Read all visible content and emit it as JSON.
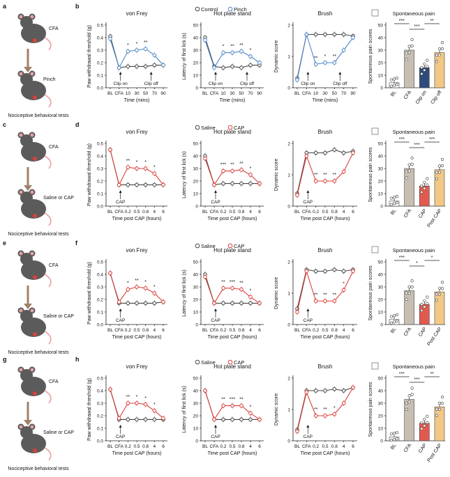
{
  "colors": {
    "control": "#444444",
    "pinch": "#4f86c6",
    "saline": "#444444",
    "cap": "#d9413d",
    "cfa_bar": "#c8bfb3",
    "clip_bar": "#2f4b7c",
    "cap_bar": "#e25a4f",
    "postcap_bar": "#f3c887",
    "bl_bar": "#ffffff"
  },
  "rows": [
    {
      "label_left": "a",
      "label_right": "b",
      "legend": [
        "Control",
        "Pinch"
      ],
      "treat_color": "pinch",
      "mouse_text": [
        "CFA",
        "Pinch"
      ],
      "footer": "Nociceptive behavioral tests",
      "x_ticks": [
        "BL",
        "CFA",
        "10",
        "30",
        "50",
        "70",
        "90"
      ],
      "x_title": "Time (mins)",
      "annots": [
        "Clip on",
        "Clip off"
      ],
      "bar_cats": [
        "BL",
        "CFA",
        "Clip on",
        "Clip off"
      ],
      "bar_colors": [
        "bl_bar",
        "cfa_bar",
        "clip_bar",
        "postcap_bar"
      ]
    },
    {
      "label_left": "c",
      "label_right": "d",
      "legend": [
        "Saline",
        "CAP"
      ],
      "treat_color": "cap",
      "mouse_text": [
        "CFA",
        "Saline or CAP"
      ],
      "footer": "Nociceptive behavioral tests",
      "x_ticks": [
        "BL",
        "CFA",
        "0.2",
        "0.5",
        "0.8",
        "4",
        "6"
      ],
      "x_title": "Time post CAP (hours)",
      "annots": [
        "CAP"
      ],
      "bar_cats": [
        "BL",
        "CFA",
        "CAP",
        "Post CAP"
      ],
      "bar_colors": [
        "bl_bar",
        "cfa_bar",
        "cap_bar",
        "postcap_bar"
      ]
    },
    {
      "label_left": "e",
      "label_right": "f",
      "legend": [
        "Saline",
        "CAP"
      ],
      "treat_color": "cap",
      "mouse_text": [
        "CFA",
        "Saline or CAP"
      ],
      "footer": "Nociceptive behavioral tests",
      "x_ticks": [
        "BL",
        "CFA",
        "0.2",
        "0.5",
        "0.8",
        "4",
        "6"
      ],
      "x_title": "Time post CAP (hours)",
      "annots": [
        "CAP"
      ],
      "bar_cats": [
        "BL",
        "CFA",
        "CAP",
        "Post CAP"
      ],
      "bar_colors": [
        "bl_bar",
        "cfa_bar",
        "cap_bar",
        "postcap_bar"
      ]
    },
    {
      "label_left": "g",
      "label_right": "h",
      "legend": [
        "Saline",
        "CAP"
      ],
      "treat_color": "cap",
      "mouse_text": [
        "CFA",
        "Saline or CAP"
      ],
      "footer": "Nociceptive behavioral tests",
      "x_ticks": [
        "BL",
        "CFA",
        "0.2",
        "0.5",
        "0.8",
        "4",
        "6"
      ],
      "x_title": "Time post CAP (hours)",
      "annots": [
        "CAP"
      ],
      "bar_cats": [
        "BL",
        "CFA",
        "CAP",
        "Post CAP"
      ],
      "bar_colors": [
        "bl_bar",
        "cfa_bar",
        "cap_bar",
        "postcap_bar"
      ]
    }
  ],
  "panel_titles": [
    "von Frey",
    "Hot plate stand",
    "Brush",
    "Spontaneous pain"
  ],
  "y_titles": [
    "Paw withdrawal threshold (g)",
    "Latency of first lick (s)",
    "Dynamic score",
    "Spontaneous pain scores"
  ],
  "chart_data": [
    {
      "row": 1,
      "panel": "von Frey",
      "type": "line",
      "x": [
        "BL",
        "CFA",
        "10",
        "30",
        "50",
        "70",
        "90"
      ],
      "ylim": [
        0,
        0.5
      ],
      "yticks": [
        "0.0",
        "0.1",
        "0.2",
        "0.3",
        "0.4",
        "0.5"
      ],
      "series": [
        {
          "name": "Control",
          "values": [
            0.41,
            0.16,
            0.17,
            0.17,
            0.17,
            0.18,
            0.18
          ]
        },
        {
          "name": "Pinch",
          "values": [
            0.39,
            0.16,
            0.29,
            0.3,
            0.31,
            0.26,
            0.18
          ]
        }
      ],
      "stars": [
        "",
        "",
        "*",
        "*",
        "**",
        "",
        ""
      ]
    },
    {
      "row": 1,
      "panel": "Hot plate stand",
      "type": "line",
      "x": [
        "BL",
        "CFA",
        "10",
        "30",
        "50",
        "70",
        "90"
      ],
      "ylim": [
        0,
        50
      ],
      "yticks": [
        "0",
        "10",
        "20",
        "30",
        "40",
        "50"
      ],
      "series": [
        {
          "name": "Control",
          "values": [
            40,
            17,
            16,
            17,
            16,
            18,
            18
          ]
        },
        {
          "name": "Pinch",
          "values": [
            38,
            16,
            28,
            28,
            29,
            25,
            20
          ]
        }
      ],
      "stars": [
        "",
        "",
        "*",
        "**",
        "**",
        "*",
        ""
      ]
    },
    {
      "row": 1,
      "panel": "Brush",
      "type": "line",
      "x": [
        "BL",
        "CFA",
        "10",
        "30",
        "50",
        "70",
        "90"
      ],
      "ylim": [
        0,
        2
      ],
      "yticks": [
        "0",
        "1",
        "2"
      ],
      "series": [
        {
          "name": "Control",
          "values": [
            0.3,
            1.7,
            1.7,
            1.7,
            1.7,
            1.7,
            1.65
          ]
        },
        {
          "name": "Pinch",
          "values": [
            0.25,
            1.7,
            0.75,
            0.8,
            0.8,
            1.2,
            1.6
          ]
        }
      ],
      "stars": [
        "",
        "",
        "**",
        "*",
        "**",
        "",
        ""
      ]
    },
    {
      "row": 1,
      "panel": "Spontaneous pain",
      "type": "bar",
      "categories": [
        "BL",
        "CFA",
        "Clip on",
        "Clip off"
      ],
      "values": [
        4,
        30,
        16,
        28
      ],
      "ylim": [
        0,
        50
      ],
      "yticks": [
        "0",
        "10",
        "20",
        "30",
        "40",
        "50"
      ],
      "sig": [
        [
          "***",
          0,
          1
        ],
        [
          "***",
          1,
          2
        ],
        [
          "**",
          2,
          3
        ]
      ]
    },
    {
      "row": 2,
      "panel": "von Frey",
      "type": "line",
      "x": [
        "BL",
        "CFA",
        "0.2",
        "0.5",
        "0.8",
        "4",
        "6"
      ],
      "ylim": [
        0,
        0.5
      ],
      "yticks": [
        "0.0",
        "0.1",
        "0.2",
        "0.3",
        "0.4",
        "0.5"
      ],
      "series": [
        {
          "name": "Saline",
          "values": [
            0.45,
            0.17,
            0.17,
            0.17,
            0.17,
            0.17,
            0.17
          ]
        },
        {
          "name": "CAP",
          "values": [
            0.45,
            0.17,
            0.31,
            0.3,
            0.3,
            0.26,
            0.17
          ]
        }
      ],
      "stars": [
        "",
        "",
        "**",
        "*",
        "*",
        "*",
        ""
      ]
    },
    {
      "row": 2,
      "panel": "Hot plate stand",
      "type": "line",
      "x": [
        "BL",
        "CFA",
        "0.2",
        "0.5",
        "0.8",
        "4",
        "6"
      ],
      "ylim": [
        0,
        50
      ],
      "yticks": [
        "0",
        "10",
        "20",
        "30",
        "40",
        "50"
      ],
      "series": [
        {
          "name": "Saline",
          "values": [
            40,
            17,
            18,
            18,
            18,
            18,
            18
          ]
        },
        {
          "name": "CAP",
          "values": [
            38,
            17,
            28,
            28,
            29,
            25,
            18
          ]
        }
      ],
      "stars": [
        "",
        "",
        "***",
        "**",
        "**",
        "*",
        ""
      ]
    },
    {
      "row": 2,
      "panel": "Brush",
      "type": "line",
      "x": [
        "BL",
        "CFA",
        "0.2",
        "0.5",
        "0.8",
        "4",
        "6"
      ],
      "ylim": [
        0,
        2
      ],
      "yticks": [
        "0",
        "1",
        "2"
      ],
      "series": [
        {
          "name": "Saline",
          "values": [
            0.4,
            1.7,
            1.7,
            1.7,
            1.8,
            1.7,
            1.75
          ]
        },
        {
          "name": "CAP",
          "values": [
            0.35,
            1.6,
            0.8,
            0.8,
            0.8,
            1.1,
            1.7
          ]
        }
      ],
      "stars": [
        "",
        "",
        "**",
        "**",
        "**",
        "",
        ""
      ]
    },
    {
      "row": 2,
      "panel": "Spontaneous pain",
      "type": "bar",
      "categories": [
        "BL",
        "CFA",
        "CAP",
        "Post CAP"
      ],
      "values": [
        4,
        30,
        16,
        29
      ],
      "ylim": [
        0,
        50
      ],
      "yticks": [
        "0",
        "10",
        "20",
        "30",
        "40",
        "50"
      ],
      "sig": [
        [
          "***",
          0,
          1
        ],
        [
          "***",
          1,
          2
        ],
        [
          "***",
          2,
          3
        ]
      ]
    },
    {
      "row": 3,
      "panel": "von Frey",
      "type": "line",
      "x": [
        "BL",
        "CFA",
        "0.2",
        "0.5",
        "0.8",
        "4",
        "6"
      ],
      "ylim": [
        0,
        0.5
      ],
      "yticks": [
        "0.0",
        "0.1",
        "0.2",
        "0.3",
        "0.4",
        "0.5"
      ],
      "series": [
        {
          "name": "Saline",
          "values": [
            0.41,
            0.17,
            0.17,
            0.17,
            0.17,
            0.17,
            0.18
          ]
        },
        {
          "name": "CAP",
          "values": [
            0.41,
            0.18,
            0.28,
            0.3,
            0.29,
            0.25,
            0.18
          ]
        }
      ],
      "stars": [
        "",
        "",
        "*",
        "**",
        "*",
        "*",
        ""
      ]
    },
    {
      "row": 3,
      "panel": "Hot plate stand",
      "type": "line",
      "x": [
        "BL",
        "CFA",
        "0.2",
        "0.5",
        "0.8",
        "4",
        "6"
      ],
      "ylim": [
        0,
        50
      ],
      "yticks": [
        "0",
        "10",
        "20",
        "30",
        "40",
        "50"
      ],
      "series": [
        {
          "name": "Saline",
          "values": [
            40,
            17,
            17,
            17,
            17,
            17,
            17
          ]
        },
        {
          "name": "CAP",
          "values": [
            38,
            17,
            29,
            29,
            28,
            22,
            17
          ]
        }
      ],
      "stars": [
        "",
        "",
        "**",
        "***",
        "**",
        "*",
        ""
      ]
    },
    {
      "row": 3,
      "panel": "Brush",
      "type": "line",
      "x": [
        "BL",
        "CFA",
        "0.2",
        "0.5",
        "0.8",
        "4",
        "6"
      ],
      "ylim": [
        0,
        2
      ],
      "yticks": [
        "0",
        "1",
        "2"
      ],
      "series": [
        {
          "name": "Saline",
          "values": [
            0.5,
            1.75,
            1.7,
            1.7,
            1.75,
            1.7,
            1.75
          ]
        },
        {
          "name": "CAP",
          "values": [
            0.4,
            1.7,
            0.75,
            0.75,
            0.75,
            1.1,
            1.7
          ]
        }
      ],
      "stars": [
        "",
        "",
        "**",
        "**",
        "**",
        "*",
        ""
      ]
    },
    {
      "row": 3,
      "panel": "Spontaneous pain",
      "type": "bar",
      "categories": [
        "BL",
        "CFA",
        "CAP",
        "Post CAP"
      ],
      "values": [
        4,
        27,
        16,
        26
      ],
      "ylim": [
        0,
        50
      ],
      "yticks": [
        "0",
        "10",
        "20",
        "30",
        "40",
        "50"
      ],
      "sig": [
        [
          "***",
          0,
          1
        ],
        [
          "*",
          1,
          2
        ],
        [
          "*",
          2,
          3
        ]
      ]
    },
    {
      "row": 4,
      "panel": "von Frey",
      "type": "line",
      "x": [
        "BL",
        "CFA",
        "0.2",
        "0.5",
        "0.8",
        "4",
        "6"
      ],
      "ylim": [
        0,
        0.5
      ],
      "yticks": [
        "0.0",
        "0.1",
        "0.2",
        "0.3",
        "0.4",
        "0.5"
      ],
      "series": [
        {
          "name": "Saline",
          "values": [
            0.41,
            0.17,
            0.17,
            0.17,
            0.17,
            0.17,
            0.17
          ]
        },
        {
          "name": "CAP",
          "values": [
            0.41,
            0.18,
            0.3,
            0.3,
            0.29,
            0.24,
            0.18
          ]
        }
      ],
      "stars": [
        "",
        "",
        "**",
        "*",
        "*",
        "*",
        ""
      ]
    },
    {
      "row": 4,
      "panel": "Hot plate stand",
      "type": "line",
      "x": [
        "BL",
        "CFA",
        "0.2",
        "0.5",
        "0.8",
        "4",
        "6"
      ],
      "ylim": [
        0,
        50
      ],
      "yticks": [
        "0",
        "10",
        "20",
        "30",
        "40",
        "50"
      ],
      "series": [
        {
          "name": "Saline",
          "values": [
            40,
            17,
            17,
            17,
            17,
            17,
            17
          ]
        },
        {
          "name": "CAP",
          "values": [
            40,
            17,
            28,
            28,
            28,
            22,
            17
          ]
        }
      ],
      "stars": [
        "",
        "",
        "**",
        "***",
        "**",
        "*",
        ""
      ]
    },
    {
      "row": 4,
      "panel": "Brush",
      "type": "line",
      "x": [
        "BL",
        "CFA",
        "0.2",
        "0.5",
        "0.8",
        "4",
        "6"
      ],
      "ylim": [
        0,
        2
      ],
      "yticks": [
        "0",
        "1",
        "2"
      ],
      "series": [
        {
          "name": "Saline",
          "values": [
            0.35,
            1.6,
            1.6,
            1.6,
            1.65,
            1.6,
            1.7
          ]
        },
        {
          "name": "CAP",
          "values": [
            0.3,
            1.55,
            0.8,
            0.8,
            0.85,
            1.2,
            1.7
          ]
        }
      ],
      "stars": [
        "",
        "",
        "**",
        "**",
        "*",
        "",
        ""
      ]
    },
    {
      "row": 4,
      "panel": "Spontaneous pain",
      "type": "bar",
      "categories": [
        "BL",
        "CFA",
        "CAP",
        "Post CAP"
      ],
      "values": [
        3,
        33,
        14,
        27
      ],
      "ylim": [
        0,
        50
      ],
      "yticks": [
        "0",
        "10",
        "20",
        "30",
        "40",
        "50"
      ],
      "sig": [
        [
          "***",
          0,
          1
        ],
        [
          "***",
          1,
          2
        ],
        [
          "**",
          2,
          3
        ]
      ]
    }
  ]
}
